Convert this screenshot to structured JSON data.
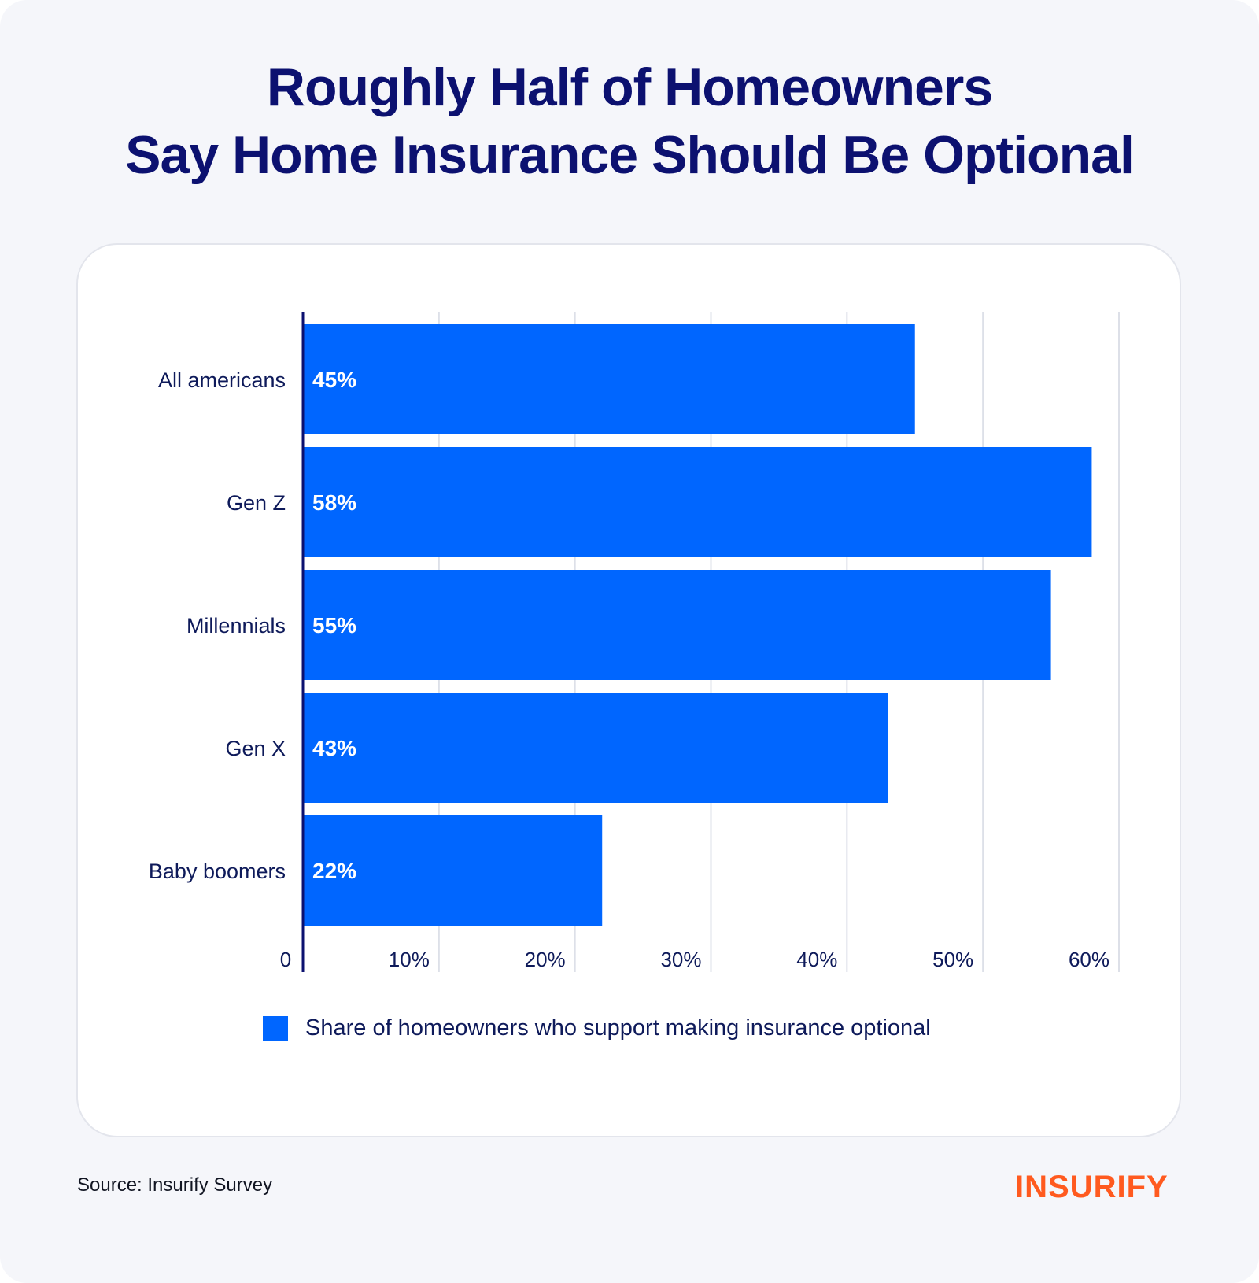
{
  "title": {
    "line1": "Roughly Half of Homeowners",
    "line2": "Say Home Insurance Should Be Optional"
  },
  "chart_data": {
    "type": "bar",
    "orientation": "horizontal",
    "categories": [
      "All americans",
      "Gen Z",
      "Millennials",
      "Gen X",
      "Baby boomers"
    ],
    "series": [
      {
        "name": "Share of homeowners who support making insurance optional",
        "values": [
          45,
          58,
          55,
          43,
          22
        ],
        "data_labels": [
          "45%",
          "58%",
          "55%",
          "43%",
          "22%"
        ]
      }
    ],
    "xlim": [
      0,
      60
    ],
    "x_ticks": [
      0,
      10,
      20,
      30,
      40,
      50,
      60
    ],
    "x_tick_labels": [
      "0",
      "10%",
      "20%",
      "30%",
      "40%",
      "50%",
      "60%"
    ],
    "grid": "vertical",
    "legend_placement": "bottom",
    "bar_color": "#0066ff"
  },
  "legend": {
    "label": "Share of homeowners who support making insurance optional"
  },
  "footer": {
    "source": "Source: Insurify Survey",
    "logo_text": "INSURIFY"
  },
  "colors": {
    "title": "#0c1170",
    "bar": "#0066ff",
    "label_text": "#0e1a5a",
    "bar_label": "#ffffff",
    "logo": "#ff5a1f",
    "background": "#f5f6fa",
    "card": "#ffffff"
  }
}
